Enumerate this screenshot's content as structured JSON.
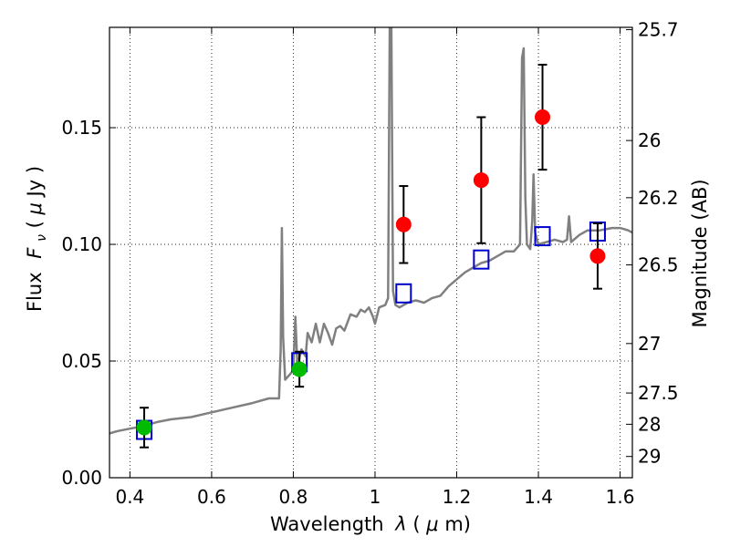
{
  "chart_data": {
    "type": "scatter",
    "xlabel_text": "Wavelength",
    "xlabel_symbol": "λ",
    "xlabel_unit_open": " (",
    "xlabel_unit_mu": "μ",
    "xlabel_unit_close": "m)",
    "ylabel_text": "Flux",
    "ylabel_symbol": "F",
    "ylabel_subscript": "ν",
    "ylabel_unit_open": " ( ",
    "ylabel_unit_mu": "μ",
    "ylabel_unit_close": "Jy )",
    "y2label": "Magnitude (AB)",
    "xlim": [
      0.35,
      1.63
    ],
    "ylim": [
      0.0,
      0.193
    ],
    "grid": true,
    "x_ticks": [
      "0.4",
      "0.6",
      "0.8",
      "1",
      "1.2",
      "1.4",
      "1.6"
    ],
    "x_tick_values": [
      0.4,
      0.6,
      0.8,
      1.0,
      1.2,
      1.4,
      1.6
    ],
    "y_ticks": [
      "0.00",
      "0.05",
      "0.10",
      "0.15"
    ],
    "y_tick_values": [
      0.0,
      0.05,
      0.1,
      0.15
    ],
    "y2_ticks": [
      {
        "label": "25.7",
        "flux": 0.192
      },
      {
        "label": "26",
        "flux": 0.1445
      },
      {
        "label": "26.2",
        "flux": 0.12
      },
      {
        "label": "26.5",
        "flux": 0.0912
      },
      {
        "label": "27",
        "flux": 0.0575
      },
      {
        "label": "27.5",
        "flux": 0.0363
      },
      {
        "label": "28",
        "flux": 0.0229
      },
      {
        "label": "29",
        "flux": 0.0091
      }
    ],
    "series": [
      {
        "kind": "spectrum",
        "color": "#808080",
        "points": [
          [
            0.35,
            0.019
          ],
          [
            0.37,
            0.02
          ],
          [
            0.4,
            0.021
          ],
          [
            0.43,
            0.022
          ],
          [
            0.45,
            0.023
          ],
          [
            0.47,
            0.024
          ],
          [
            0.5,
            0.025
          ],
          [
            0.55,
            0.026
          ],
          [
            0.6,
            0.028
          ],
          [
            0.65,
            0.03
          ],
          [
            0.7,
            0.032
          ],
          [
            0.74,
            0.034
          ],
          [
            0.765,
            0.034
          ],
          [
            0.769,
            0.055
          ],
          [
            0.772,
            0.107
          ],
          [
            0.775,
            0.06
          ],
          [
            0.78,
            0.042
          ],
          [
            0.79,
            0.044
          ],
          [
            0.8,
            0.046
          ],
          [
            0.805,
            0.069
          ],
          [
            0.81,
            0.048
          ],
          [
            0.82,
            0.055
          ],
          [
            0.83,
            0.052
          ],
          [
            0.835,
            0.062
          ],
          [
            0.845,
            0.058
          ],
          [
            0.855,
            0.066
          ],
          [
            0.865,
            0.058
          ],
          [
            0.875,
            0.066
          ],
          [
            0.885,
            0.062
          ],
          [
            0.895,
            0.057
          ],
          [
            0.905,
            0.064
          ],
          [
            0.915,
            0.065
          ],
          [
            0.925,
            0.063
          ],
          [
            0.94,
            0.07
          ],
          [
            0.955,
            0.069
          ],
          [
            0.965,
            0.072
          ],
          [
            0.975,
            0.071
          ],
          [
            0.985,
            0.073
          ],
          [
            0.995,
            0.069
          ],
          [
            1.0,
            0.066
          ],
          [
            1.01,
            0.073
          ],
          [
            1.025,
            0.074
          ],
          [
            1.032,
            0.077
          ],
          [
            1.036,
            0.193
          ],
          [
            1.04,
            0.193
          ],
          [
            1.044,
            0.08
          ],
          [
            1.05,
            0.074
          ],
          [
            1.06,
            0.073
          ],
          [
            1.08,
            0.075
          ],
          [
            1.1,
            0.076
          ],
          [
            1.12,
            0.075
          ],
          [
            1.14,
            0.077
          ],
          [
            1.16,
            0.078
          ],
          [
            1.18,
            0.082
          ],
          [
            1.2,
            0.085
          ],
          [
            1.22,
            0.088
          ],
          [
            1.24,
            0.09
          ],
          [
            1.26,
            0.092
          ],
          [
            1.28,
            0.093
          ],
          [
            1.3,
            0.095
          ],
          [
            1.32,
            0.097
          ],
          [
            1.34,
            0.097
          ],
          [
            1.355,
            0.1
          ],
          [
            1.36,
            0.18
          ],
          [
            1.364,
            0.184
          ],
          [
            1.368,
            0.12
          ],
          [
            1.372,
            0.1
          ],
          [
            1.38,
            0.098
          ],
          [
            1.385,
            0.11
          ],
          [
            1.388,
            0.13
          ],
          [
            1.392,
            0.105
          ],
          [
            1.4,
            0.1
          ],
          [
            1.42,
            0.101
          ],
          [
            1.44,
            0.102
          ],
          [
            1.46,
            0.101
          ],
          [
            1.47,
            0.102
          ],
          [
            1.475,
            0.112
          ],
          [
            1.48,
            0.101
          ],
          [
            1.5,
            0.104
          ],
          [
            1.52,
            0.106
          ],
          [
            1.55,
            0.106
          ],
          [
            1.58,
            0.107
          ],
          [
            1.6,
            0.107
          ],
          [
            1.62,
            0.106
          ],
          [
            1.63,
            0.105
          ]
        ]
      },
      {
        "kind": "model-squares",
        "color": "#0000cc",
        "points": [
          [
            0.435,
            0.0205
          ],
          [
            0.815,
            0.0495
          ],
          [
            1.07,
            0.079
          ],
          [
            1.26,
            0.0935
          ],
          [
            1.41,
            0.1035
          ],
          [
            1.545,
            0.1055
          ]
        ]
      },
      {
        "kind": "observed-green",
        "color": "#00bb00",
        "points": [
          {
            "x": 0.435,
            "y": 0.0215,
            "err": 0.0085
          },
          {
            "x": 0.815,
            "y": 0.0465,
            "err": 0.0075
          }
        ]
      },
      {
        "kind": "observed-red",
        "color": "#ff0000",
        "points": [
          {
            "x": 1.07,
            "y": 0.1085,
            "err": 0.0165
          },
          {
            "x": 1.26,
            "y": 0.1275,
            "err": 0.027
          },
          {
            "x": 1.41,
            "y": 0.1545,
            "err": 0.0225
          },
          {
            "x": 1.545,
            "y": 0.095,
            "err": 0.014
          }
        ]
      }
    ]
  }
}
